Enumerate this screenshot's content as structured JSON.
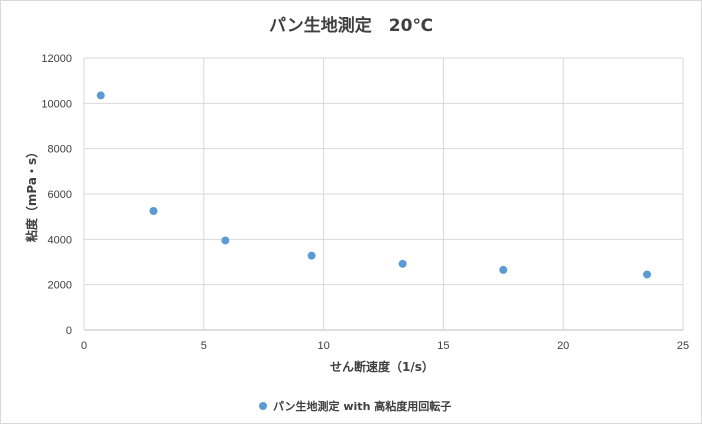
{
  "chart_data": {
    "type": "scatter",
    "title": "パン生地測定　20℃",
    "xlabel": "せん断速度（1/s）",
    "ylabel": "粘度（mPa・s）",
    "xlim": [
      0,
      25
    ],
    "ylim": [
      0,
      12000
    ],
    "x_ticks": [
      "0",
      "5",
      "10",
      "15",
      "20",
      "25"
    ],
    "y_ticks": [
      "0",
      "2000",
      "4000",
      "6000",
      "8000",
      "10000",
      "12000"
    ],
    "grid": "vertical and horizontal",
    "legend_position": "bottom",
    "series": [
      {
        "name": "パン生地測定 with 高粘度用回転子",
        "color": "#5b9bd5",
        "x": [
          0.7,
          2.9,
          5.9,
          9.5,
          13.3,
          17.5,
          23.5
        ],
        "y": [
          10350,
          5250,
          3950,
          3280,
          2920,
          2650,
          2450
        ]
      }
    ]
  }
}
